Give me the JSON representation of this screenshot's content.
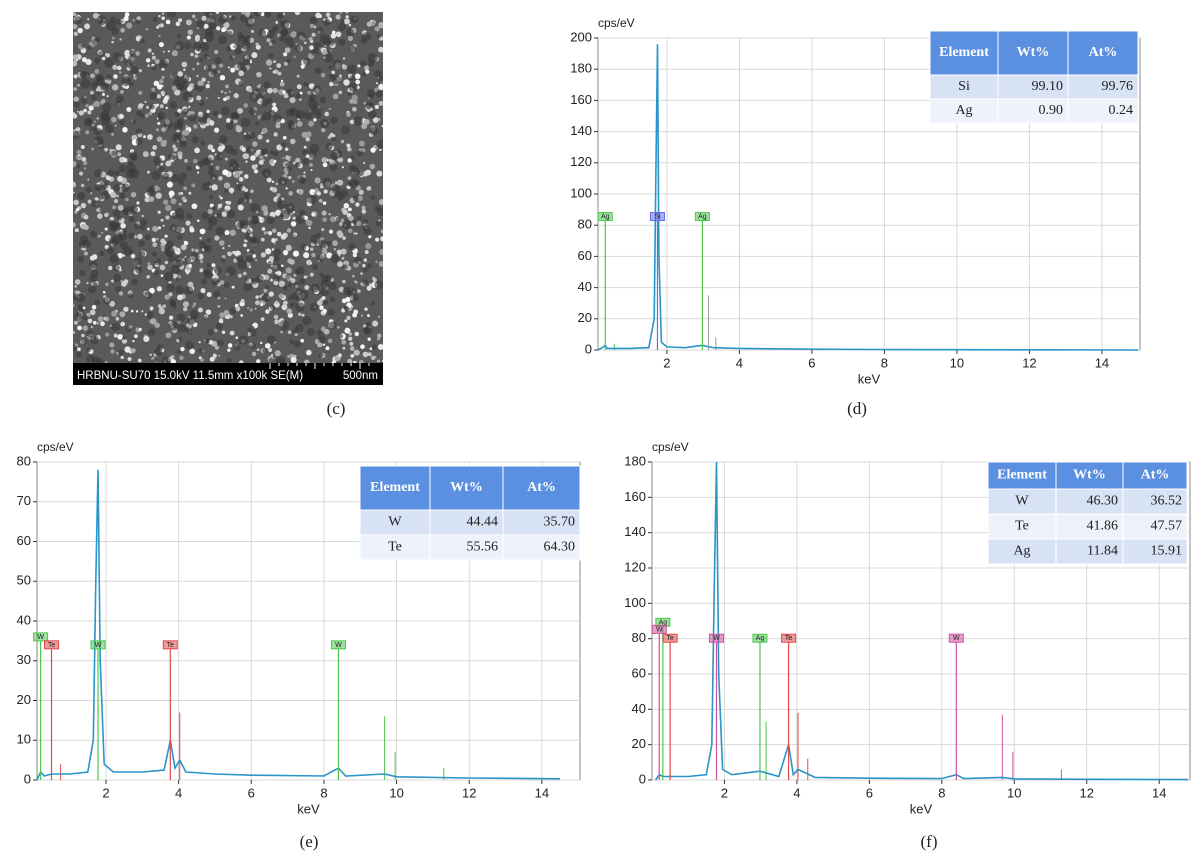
{
  "image": {
    "info_bar": "HRBNU-SU70 15.0kV 11.5mm x100k SE(M)",
    "scale_bar": "500nm",
    "caption": "(c)"
  },
  "chart_data": [
    {
      "type": "line",
      "caption": "(d)",
      "y_label": "cps/eV",
      "x_label": "keV",
      "xlim": [
        0.1,
        15.05
      ],
      "ylim": [
        0,
        200
      ],
      "xticks": [
        2,
        4,
        6,
        8,
        10,
        12,
        14
      ],
      "yticks": [
        0,
        20,
        40,
        60,
        80,
        100,
        120,
        140,
        160,
        180,
        200
      ],
      "grid": true,
      "series": [
        {
          "color": "#2a95c8",
          "x": [
            0.1,
            0.25,
            0.3,
            0.35,
            0.5,
            1.0,
            1.5,
            1.65,
            1.7,
            1.74,
            1.78,
            1.85,
            2.0,
            2.5,
            2.98,
            3.15,
            3.3,
            4,
            6,
            8,
            10,
            12,
            15
          ],
          "values": [
            0,
            2,
            3,
            1,
            1,
            1,
            1.5,
            20,
            120,
            196,
            60,
            5,
            2,
            1.5,
            3,
            2,
            1.5,
            1,
            0.5,
            0.3,
            0.2,
            0.1,
            0
          ]
        }
      ],
      "markers": [
        {
          "label": "Ag",
          "x": 0.3,
          "height": 83,
          "color": "#4cc84c"
        },
        {
          "label": "Si",
          "x": 1.74,
          "height": 83,
          "color": "#6a6af0"
        },
        {
          "label": "Ag",
          "x": 2.98,
          "height": 83,
          "color": "#4cc84c"
        }
      ],
      "lines": [
        {
          "x": 3.15,
          "height": 35,
          "color": "#999999"
        },
        {
          "x": 3.35,
          "height": 8,
          "color": "#999999"
        },
        {
          "x": 0.55,
          "height": 4,
          "color": "#4cc84c"
        }
      ],
      "table": {
        "columns": [
          "Element",
          "Wt%",
          "At%"
        ],
        "rows": [
          [
            "Si",
            "99.10",
            "99.76"
          ],
          [
            "Ag",
            "0.90",
            "0.24"
          ]
        ]
      }
    },
    {
      "type": "line",
      "caption": "(e)",
      "y_label": "cps/eV",
      "x_label": "keV",
      "xlim": [
        0.1,
        15.05
      ],
      "ylim": [
        0,
        80
      ],
      "xticks": [
        2,
        4,
        6,
        8,
        10,
        12,
        14
      ],
      "yticks": [
        0,
        10,
        20,
        30,
        40,
        50,
        60,
        70,
        80
      ],
      "grid": true,
      "series": [
        {
          "color": "#2a95c8",
          "x": [
            0.1,
            0.2,
            0.3,
            0.5,
            1.0,
            1.5,
            1.65,
            1.72,
            1.78,
            1.84,
            1.95,
            2.2,
            3.0,
            3.6,
            3.77,
            3.9,
            4.03,
            4.2,
            5,
            6,
            8,
            8.4,
            8.6,
            9.67,
            10,
            12,
            14.5
          ],
          "values": [
            0,
            2,
            1,
            1.5,
            1.5,
            2,
            10,
            50,
            78,
            30,
            4,
            2,
            2,
            2.5,
            10,
            3,
            5,
            2,
            1.5,
            1.2,
            1,
            3,
            1,
            1.5,
            0.8,
            0.5,
            0.3
          ]
        }
      ],
      "markers": [
        {
          "label": "W",
          "x": 0.2,
          "height": 35,
          "color": "#4cc84c"
        },
        {
          "label": "Te",
          "x": 0.5,
          "height": 33,
          "color": "#e04848"
        },
        {
          "label": "W",
          "x": 1.78,
          "height": 33,
          "color": "#4cc84c"
        },
        {
          "label": "Te",
          "x": 3.77,
          "height": 33,
          "color": "#e04848"
        },
        {
          "label": "W",
          "x": 8.4,
          "height": 33,
          "color": "#4cc84c"
        }
      ],
      "lines": [
        {
          "x": 4.03,
          "height": 17,
          "color": "#e04848"
        },
        {
          "x": 9.67,
          "height": 16,
          "color": "#4cc84c"
        },
        {
          "x": 9.96,
          "height": 7,
          "color": "#4cc84c"
        },
        {
          "x": 11.3,
          "height": 3,
          "color": "#4cc84c"
        },
        {
          "x": 0.75,
          "height": 4,
          "color": "#e04848"
        }
      ],
      "table": {
        "columns": [
          "Element",
          "Wt%",
          "At%"
        ],
        "rows": [
          [
            "W",
            "44.44",
            "35.70"
          ],
          [
            "Te",
            "55.56",
            "64.30"
          ]
        ]
      }
    },
    {
      "type": "line",
      "caption": "(f)",
      "y_label": "cps/eV",
      "x_label": "keV",
      "xlim": [
        0,
        14.85
      ],
      "ylim": [
        0,
        180
      ],
      "xticks": [
        2,
        4,
        6,
        8,
        10,
        12,
        14
      ],
      "yticks": [
        0,
        20,
        40,
        60,
        80,
        100,
        120,
        140,
        160,
        180
      ],
      "grid": true,
      "series": [
        {
          "color": "#2a95c8",
          "x": [
            0.1,
            0.2,
            0.3,
            0.5,
            1.0,
            1.5,
            1.65,
            1.72,
            1.78,
            1.84,
            1.95,
            2.2,
            2.98,
            3.5,
            3.77,
            3.9,
            4.03,
            4.5,
            6,
            8,
            8.4,
            8.6,
            9.67,
            10,
            12,
            14.8
          ],
          "values": [
            0,
            3,
            2,
            2,
            2,
            3,
            20,
            110,
            180,
            60,
            6,
            3,
            5,
            2,
            20,
            3,
            6,
            1.5,
            1,
            0.8,
            3,
            0.8,
            1.5,
            0.6,
            0.4,
            0.2
          ]
        }
      ],
      "markers": [
        {
          "label": "Ag",
          "x": 0.3,
          "height": 87,
          "color": "#4cc84c"
        },
        {
          "label": "W",
          "x": 0.2,
          "height": 83,
          "color": "#d050a0"
        },
        {
          "label": "Te",
          "x": 0.5,
          "height": 78,
          "color": "#e04848"
        },
        {
          "label": "W",
          "x": 1.78,
          "height": 78,
          "color": "#d050a0"
        },
        {
          "label": "Ag",
          "x": 2.98,
          "height": 78,
          "color": "#4cc84c"
        },
        {
          "label": "Te",
          "x": 3.77,
          "height": 78,
          "color": "#e04848"
        },
        {
          "label": "W",
          "x": 8.4,
          "height": 78,
          "color": "#d050a0"
        }
      ],
      "lines": [
        {
          "x": 3.15,
          "height": 33,
          "color": "#4cc84c"
        },
        {
          "x": 4.03,
          "height": 38,
          "color": "#e04848"
        },
        {
          "x": 4.3,
          "height": 12,
          "color": "#e04848"
        },
        {
          "x": 9.67,
          "height": 37,
          "color": "#d050a0"
        },
        {
          "x": 9.96,
          "height": 16,
          "color": "#d050a0"
        },
        {
          "x": 11.3,
          "height": 6,
          "color": "#d050a0"
        }
      ],
      "table": {
        "columns": [
          "Element",
          "Wt%",
          "At%"
        ],
        "rows": [
          [
            "W",
            "46.30",
            "36.52"
          ],
          [
            "Te",
            "41.86",
            "47.57"
          ],
          [
            "Ag",
            "11.84",
            "15.91"
          ]
        ]
      }
    }
  ]
}
